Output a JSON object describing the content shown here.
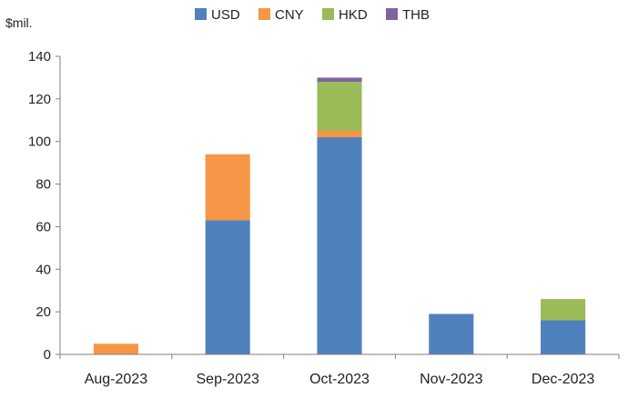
{
  "chart_data": {
    "type": "bar",
    "stacked": true,
    "ylabel": "$mil.",
    "ylim": [
      0,
      140
    ],
    "yticks": [
      0,
      20,
      40,
      60,
      80,
      100,
      120,
      140
    ],
    "categories": [
      "Aug-2023",
      "Sep-2023",
      "Oct-2023",
      "Nov-2023",
      "Dec-2023"
    ],
    "series": [
      {
        "name": "USD",
        "color": "#4f81bd",
        "values": [
          0,
          63,
          102,
          19,
          16
        ]
      },
      {
        "name": "CNY",
        "color": "#f79646",
        "values": [
          5,
          31,
          3,
          0,
          0
        ]
      },
      {
        "name": "HKD",
        "color": "#9bbb59",
        "values": [
          0,
          0,
          23,
          0,
          10
        ]
      },
      {
        "name": "THB",
        "color": "#8064a2",
        "values": [
          0,
          0,
          2,
          0,
          0
        ]
      }
    ],
    "legend_position": "top",
    "grid": false
  }
}
